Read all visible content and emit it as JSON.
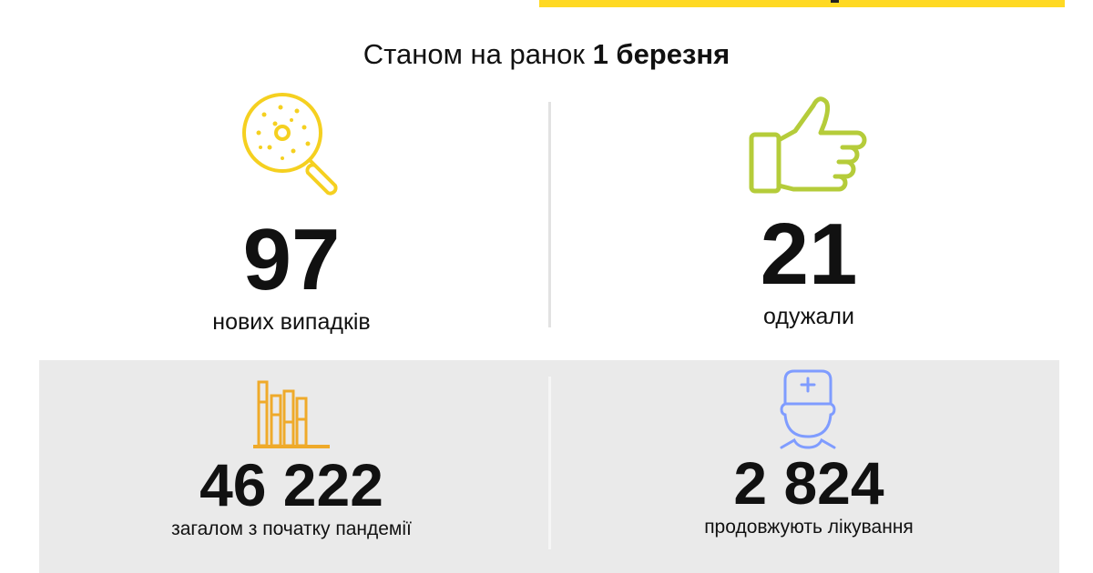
{
  "header": {
    "title_prefix": "Станом на ранок",
    "title_date": "1 березня"
  },
  "colors": {
    "accent": "#FFD923",
    "new_cases": "#F5D020",
    "recovered": "#B5CC3A",
    "total": "#EFAA2A",
    "treatment": "#7F9CFF",
    "panel": "#EAEAEA"
  },
  "stats": [
    {
      "icon": "virus-magnifier-icon",
      "value": "97",
      "label": "нових випадків"
    },
    {
      "icon": "thumbs-up-icon",
      "value": "21",
      "label": "одужали"
    },
    {
      "icon": "bar-chart-icon",
      "value": "46 222",
      "label": "загалом з початку пандемії"
    },
    {
      "icon": "doctor-icon",
      "value": "2 824",
      "label": "продовжують лікування"
    }
  ]
}
